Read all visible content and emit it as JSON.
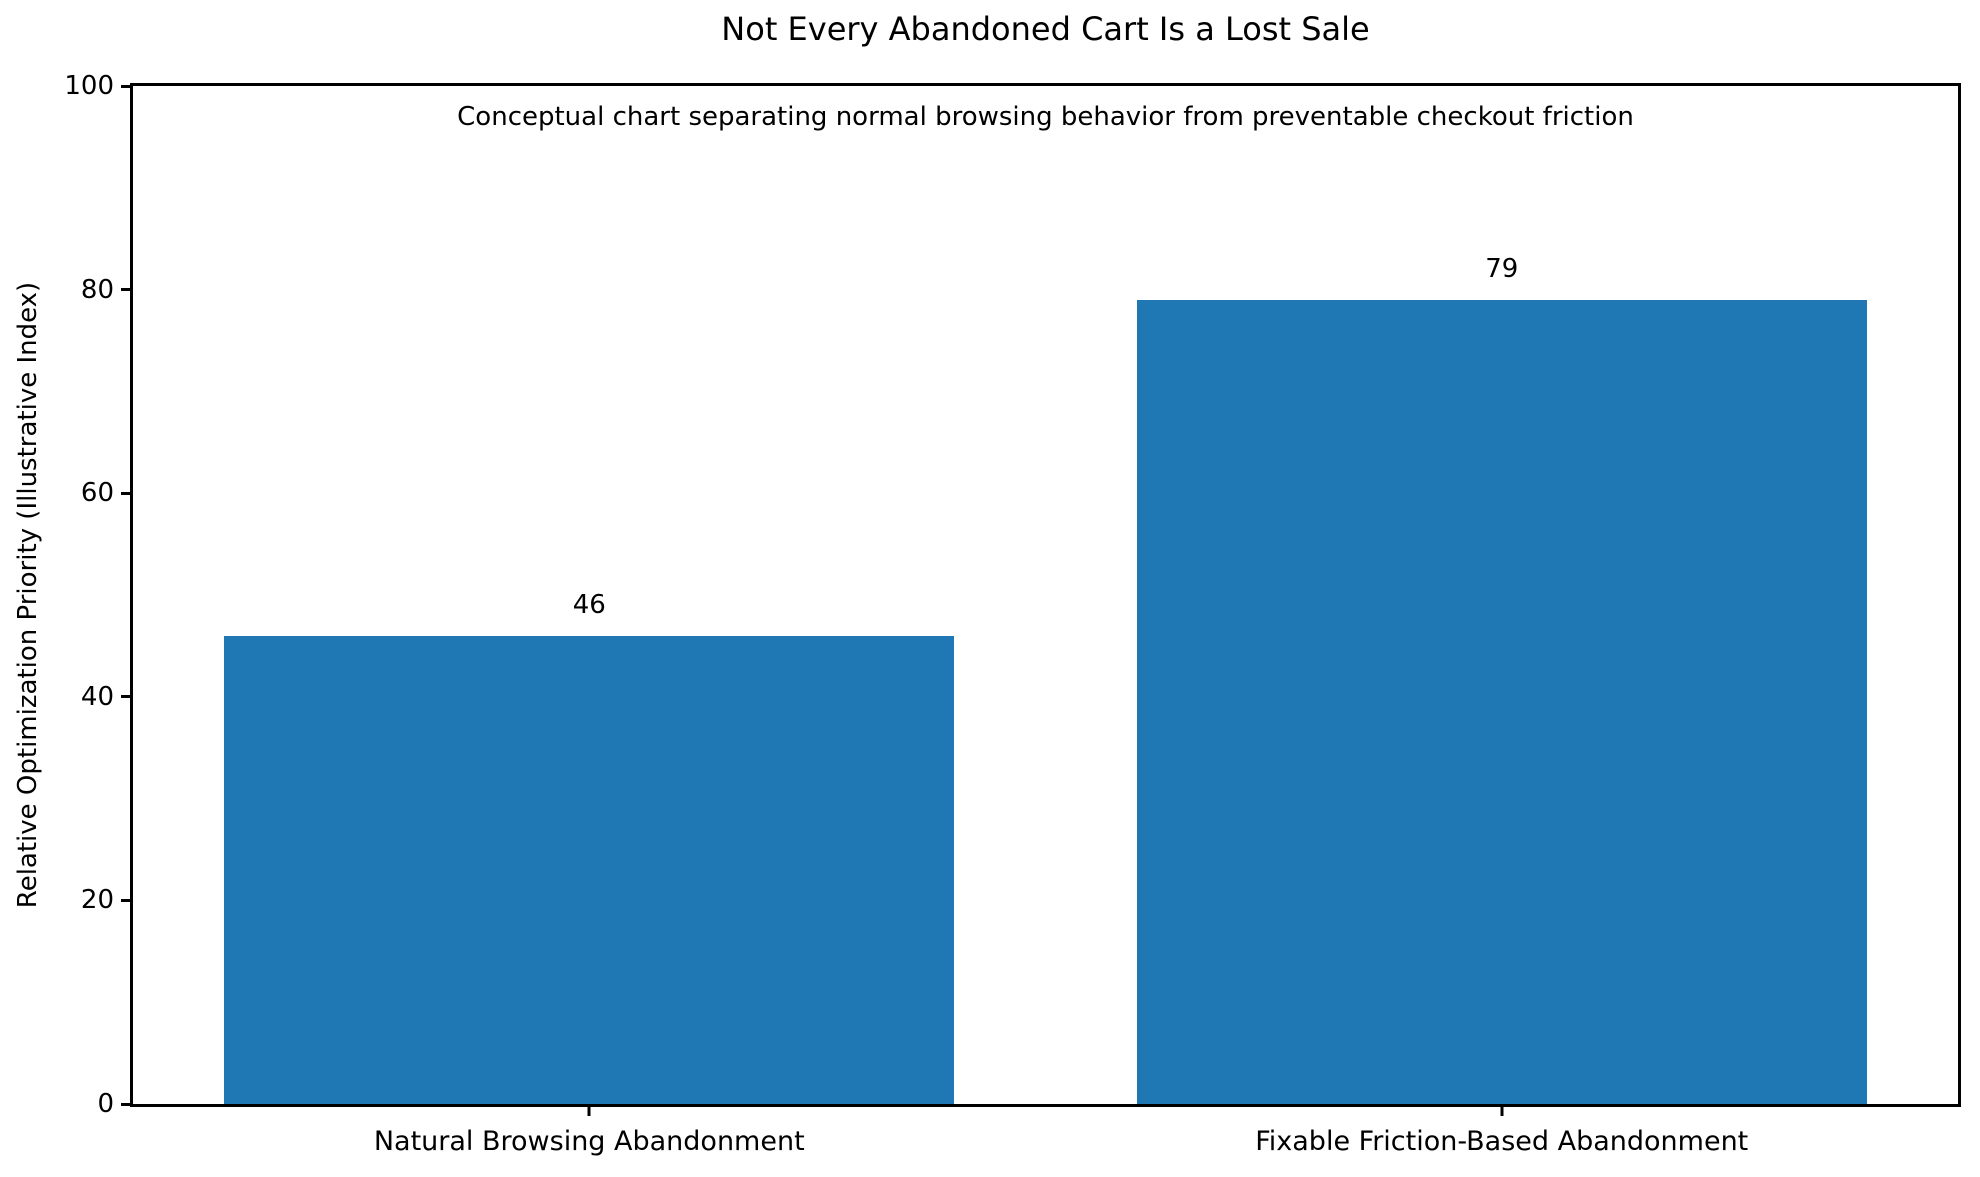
{
  "chart_data": {
    "type": "bar",
    "title": "Not Every Abandoned Cart Is a Lost Sale",
    "subtitle": "Conceptual chart separating normal browsing behavior from preventable checkout friction",
    "categories": [
      "Natural Browsing Abandonment",
      "Fixable Friction-Based Abandonment"
    ],
    "values": [
      46,
      79
    ],
    "bar_value_labels": [
      "46",
      "79"
    ],
    "xlabel": "",
    "ylabel": "Relative Optimization Priority (Illustrative Index)",
    "ylim": [
      0,
      100
    ],
    "yticks": [
      0,
      20,
      40,
      60,
      80,
      100
    ],
    "bar_color": "#1f77b4",
    "bar_width_fraction": 0.8,
    "grid": false,
    "legend_position": "none",
    "spine_color": "#000000",
    "background_color": "#ffffff"
  }
}
